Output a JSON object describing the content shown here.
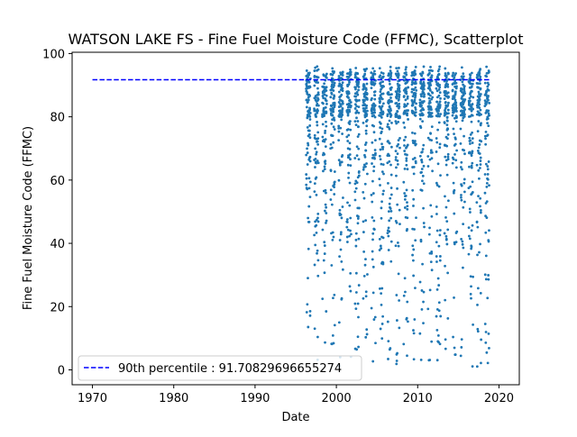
{
  "chart_data": {
    "type": "scatter",
    "title": "WATSON LAKE FS - Fine Fuel Moisture Code (FFMC), Scatterplot",
    "xlabel": "Date",
    "ylabel": "Fine Fuel Moisture Code (FFMC)",
    "xlim": [
      1967.5,
      2022.5
    ],
    "ylim": [
      -4.7,
      100.4
    ],
    "x_ticks": [
      1970,
      1980,
      1990,
      2000,
      2010,
      2020
    ],
    "y_ticks": [
      0,
      20,
      40,
      60,
      80,
      100
    ],
    "grid": false,
    "legend_position": "lower-left",
    "series": [
      {
        "kind": "points",
        "color": "#1f77b4",
        "x_range": [
          1996.2,
          2018.8
        ],
        "y_range": [
          1.0,
          96.0
        ],
        "seasons": [
          1996,
          1997,
          1998,
          1999,
          2000,
          2001,
          2002,
          2003,
          2004,
          2005,
          2006,
          2007,
          2008,
          2009,
          2010,
          2011,
          2012,
          2013,
          2014,
          2015,
          2016,
          2017,
          2018
        ],
        "points_per_season": 90,
        "distribution": "daily fire-season values per year (Apr–Oct), concentrated between 80 and 94, sparse tail down to about 1"
      },
      {
        "kind": "hline",
        "name": "90th percentile : 91.70829696655274",
        "value": 91.70829696655274,
        "x_range": [
          1970,
          2019
        ],
        "color": "#0000ff",
        "style": "dashed"
      }
    ],
    "legend": [
      "90th percentile : 91.70829696655274"
    ]
  }
}
